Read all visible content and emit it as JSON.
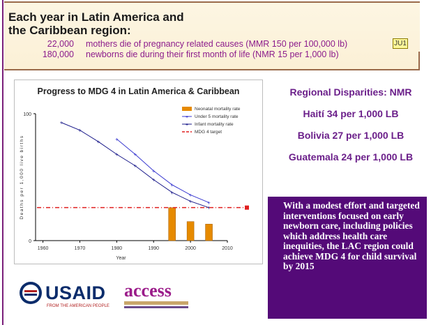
{
  "header": {
    "title_line1": "Each year in Latin America and",
    "title_line2": "the Caribbean region:",
    "rows": [
      {
        "num": "22,000",
        "text": "mothers die of pregnancy related causes (MMR 150 per 100,000 lb)"
      },
      {
        "num": "180,000",
        "text": "newborns die during their first month of life (NMR 15 per  1,000 lb)"
      }
    ],
    "comment_marker": "JU1"
  },
  "chart_data": {
    "type": "line",
    "title": "Progress to MDG 4 in Latin America & Caribbean",
    "xlabel": "Year",
    "ylabel": "Deaths per 1,000 live births",
    "xlim": [
      1958,
      2010
    ],
    "ylim": [
      0,
      100
    ],
    "x_ticks": [
      "1960",
      "1970",
      "1980",
      "1990",
      "2000",
      "2010"
    ],
    "y_ticks": [
      "0",
      "100"
    ],
    "series": [
      {
        "name": "Neonatal mortality rate",
        "type": "bar",
        "x": [
          1995,
          2000,
          2005
        ],
        "values": [
          26,
          15,
          13
        ],
        "color": "#e68a00"
      },
      {
        "name": "Under 5 mortality rate",
        "type": "line",
        "x": [
          1980,
          1985,
          1990,
          1995,
          2000,
          2005
        ],
        "values": [
          80,
          68,
          55,
          44,
          36,
          30
        ],
        "color": "#3a3ad0"
      },
      {
        "name": "Infant mortality rate",
        "type": "line",
        "x": [
          1965,
          1970,
          1975,
          1980,
          1985,
          1990,
          1995,
          2000,
          2005
        ],
        "values": [
          93,
          87,
          78,
          68,
          59,
          48,
          38,
          31,
          26
        ],
        "color": "#1a1a8a"
      },
      {
        "name": "MDG 4 target",
        "type": "hline",
        "value": 26,
        "color": "#e02020"
      }
    ],
    "legend": "top-right"
  },
  "disparities": {
    "title": "Regional Disparities: NMR",
    "items": [
      "Haití 34 per  1,000 LB",
      "Bolivia 27 per 1,000 LB",
      "Guatemala 24 per 1,000 LB"
    ]
  },
  "message": "With a modest effort and targeted interventions focused on early newborn care, including policies which address health care inequities, the LAC region could achieve MDG 4 for child survival by 2015",
  "logos": {
    "usaid": "USAID",
    "usaid_tagline": "FROM THE AMERICAN PEOPLE",
    "access": "access"
  },
  "colors": {
    "accent_purple": "#540a78",
    "text_purple": "#8c1c8c",
    "header_bg": "#fdf6e3"
  }
}
